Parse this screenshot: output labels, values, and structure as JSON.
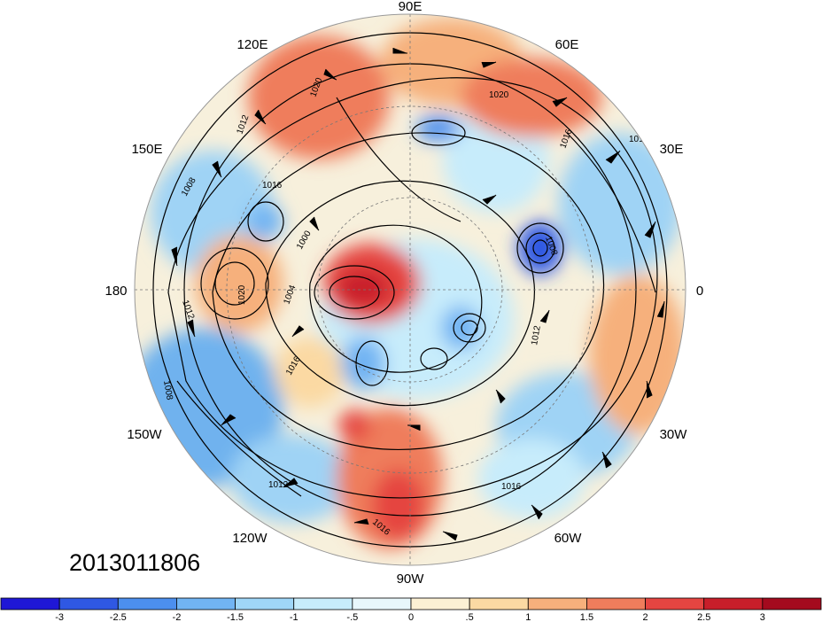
{
  "timestamp": "2013011806",
  "longitude_labels": {
    "e90": "90E",
    "e60": "60E",
    "e30": "30E",
    "zero": "0",
    "w30": "30W",
    "w60": "60W",
    "w90": "90W",
    "w120": "120W",
    "w150": "150W",
    "lon180": "180",
    "e150": "150E",
    "e120": "120E"
  },
  "colorbar": {
    "colors": [
      "#1f17d6",
      "#2f58e3",
      "#4c8fee",
      "#71b4f3",
      "#9fd6f8",
      "#c7ecfb",
      "#e8f7fb",
      "#fcf1d4",
      "#fbd9a3",
      "#f6b07c",
      "#ef7d5c",
      "#e54541",
      "#c81e2a",
      "#a40a1e"
    ],
    "labels": [
      "-3",
      "-2.5",
      "-2",
      "-1.5",
      "-1",
      "-.5",
      "0",
      ".5",
      "1",
      "1.5",
      "2",
      "2.5",
      "3"
    ]
  },
  "contour_labels": [
    "1020",
    "1012",
    "1016",
    "1008",
    "1004",
    "1000",
    "1020",
    "1012",
    "1016",
    "1008",
    "1012",
    "1016",
    "1020",
    "1016",
    "1012",
    "1012",
    "1008",
    "1016"
  ],
  "features": {
    "warm_anomalies": [
      "north-america-central",
      "siberia",
      "eastern-europe",
      "north-pacific"
    ],
    "cold_anomalies": [
      "north-atlantic",
      "central-siberia",
      "arctic",
      "north-pacific-east"
    ]
  }
}
